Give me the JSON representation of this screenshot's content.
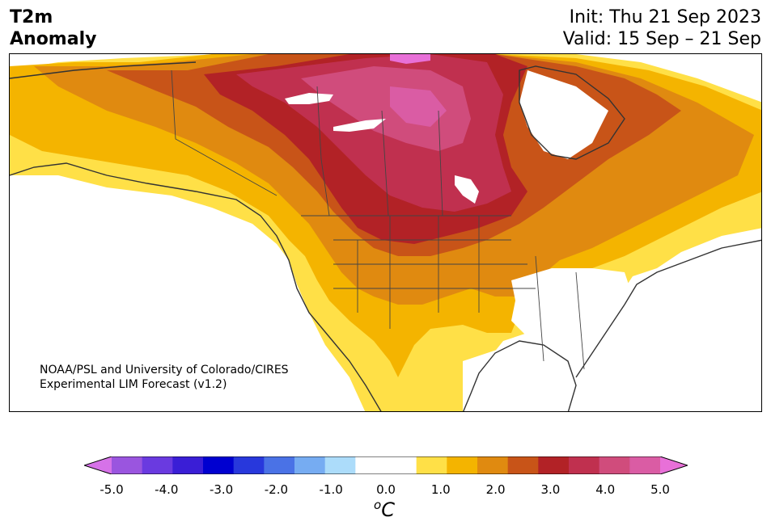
{
  "header": {
    "title_line1": "T2m",
    "title_line2": "Anomaly",
    "init_label": "Init: Thu 21 Sep 2023",
    "valid_label": "Valid: 15 Sep – 21 Sep"
  },
  "map": {
    "credit_line1": "NOAA/PSL and University of Colorado/CIRES",
    "credit_line2": "Experimental LIM Forecast (v1.2)",
    "region": "North America"
  },
  "colorbar": {
    "ticks": [
      "-5.0",
      "-4.0",
      "-3.0",
      "-2.0",
      "-1.0",
      "0.0",
      "1.0",
      "2.0",
      "3.0",
      "4.0",
      "5.0"
    ],
    "unit_super": "o",
    "unit_main": "C",
    "colors": [
      "#d672e8",
      "#9a55df",
      "#6a3ae0",
      "#3a1ed6",
      "#0000d0",
      "#2838dc",
      "#4a72e6",
      "#76acf2",
      "#acdcfa",
      "#ffffff",
      "#ffffff",
      "#ffe047",
      "#f4b400",
      "#e08a10",
      "#c85418",
      "#b22226",
      "#c0304f",
      "#d04c7c",
      "#da5ca4",
      "#e870d8"
    ]
  }
}
